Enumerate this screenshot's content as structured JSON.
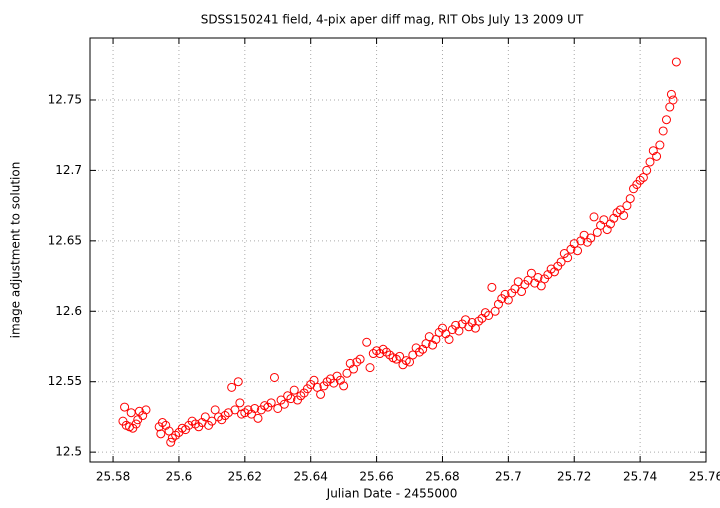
{
  "chart_data": {
    "type": "scatter",
    "title": "SDSS150241 field,  4-pix aper diff mag, RIT Obs July 13 2009 UT",
    "x_label": "Julian Date - 2455000",
    "y_label": "image adjustment to solution",
    "xlim": [
      25.573,
      25.76
    ],
    "ylim": [
      12.493,
      12.794
    ],
    "xticks": [
      25.58,
      25.6,
      25.62,
      25.64,
      25.66,
      25.68,
      25.7,
      25.72,
      25.74,
      25.76
    ],
    "yticks": [
      12.5,
      12.55,
      12.6,
      12.65,
      12.7,
      12.75
    ],
    "grid": true,
    "marker": "open-circle",
    "color": "#ff0000",
    "x": [
      25.583,
      25.5835,
      25.584,
      25.585,
      25.5855,
      25.586,
      25.587,
      25.5875,
      25.588,
      25.589,
      25.59,
      25.594,
      25.5945,
      25.595,
      25.596,
      25.597,
      25.5975,
      25.598,
      25.599,
      25.6,
      25.601,
      25.602,
      25.603,
      25.604,
      25.605,
      25.606,
      25.607,
      25.608,
      25.609,
      25.61,
      25.611,
      25.612,
      25.613,
      25.614,
      25.615,
      25.616,
      25.617,
      25.618,
      25.6185,
      25.619,
      25.62,
      25.621,
      25.622,
      25.623,
      25.624,
      25.625,
      25.626,
      25.627,
      25.628,
      25.629,
      25.63,
      25.631,
      25.632,
      25.633,
      25.634,
      25.635,
      25.636,
      25.637,
      25.638,
      25.639,
      25.64,
      25.641,
      25.642,
      25.643,
      25.644,
      25.645,
      25.646,
      25.647,
      25.648,
      25.649,
      25.65,
      25.651,
      25.652,
      25.653,
      25.654,
      25.655,
      25.657,
      25.658,
      25.659,
      25.66,
      25.661,
      25.662,
      25.663,
      25.664,
      25.665,
      25.666,
      25.667,
      25.668,
      25.669,
      25.67,
      25.671,
      25.672,
      25.673,
      25.674,
      25.675,
      25.676,
      25.677,
      25.678,
      25.679,
      25.68,
      25.681,
      25.682,
      25.683,
      25.684,
      25.685,
      25.686,
      25.687,
      25.688,
      25.689,
      25.69,
      25.691,
      25.692,
      25.693,
      25.694,
      25.695,
      25.696,
      25.697,
      25.698,
      25.699,
      25.7,
      25.701,
      25.702,
      25.703,
      25.704,
      25.705,
      25.706,
      25.707,
      25.708,
      25.709,
      25.71,
      25.711,
      25.712,
      25.713,
      25.714,
      25.715,
      25.716,
      25.717,
      25.718,
      25.719,
      25.72,
      25.721,
      25.722,
      25.723,
      25.724,
      25.725,
      25.726,
      25.727,
      25.728,
      25.729,
      25.73,
      25.731,
      25.732,
      25.733,
      25.734,
      25.735,
      25.736,
      25.737,
      25.738,
      25.739,
      25.74,
      25.741,
      25.742,
      25.743,
      25.744,
      25.745,
      25.746,
      25.747,
      25.748,
      25.749,
      25.7495,
      25.75,
      25.751
    ],
    "values": [
      12.522,
      12.532,
      12.519,
      12.518,
      12.528,
      12.517,
      12.52,
      12.523,
      12.529,
      12.526,
      12.53,
      12.518,
      12.513,
      12.521,
      12.519,
      12.515,
      12.507,
      12.51,
      12.512,
      12.514,
      12.517,
      12.516,
      12.519,
      12.522,
      12.52,
      12.518,
      12.521,
      12.525,
      12.519,
      12.522,
      12.53,
      12.525,
      12.523,
      12.526,
      12.528,
      12.546,
      12.53,
      12.55,
      12.535,
      12.527,
      12.528,
      12.53,
      12.527,
      12.531,
      12.524,
      12.53,
      12.533,
      12.532,
      12.535,
      12.553,
      12.531,
      12.537,
      12.534,
      12.54,
      12.538,
      12.544,
      12.537,
      12.54,
      12.542,
      12.545,
      12.548,
      12.551,
      12.546,
      12.541,
      12.547,
      12.55,
      12.552,
      12.549,
      12.554,
      12.551,
      12.547,
      12.556,
      12.563,
      12.559,
      12.564,
      12.566,
      12.578,
      12.56,
      12.57,
      12.572,
      12.57,
      12.573,
      12.571,
      12.569,
      12.567,
      12.566,
      12.568,
      12.562,
      12.565,
      12.564,
      12.569,
      12.574,
      12.571,
      12.573,
      12.577,
      12.582,
      12.576,
      12.58,
      12.585,
      12.588,
      12.584,
      12.58,
      12.587,
      12.59,
      12.586,
      12.591,
      12.594,
      12.589,
      12.592,
      12.588,
      12.593,
      12.595,
      12.599,
      12.597,
      12.617,
      12.6,
      12.605,
      12.609,
      12.612,
      12.608,
      12.613,
      12.616,
      12.621,
      12.614,
      12.619,
      12.622,
      12.627,
      12.62,
      12.624,
      12.618,
      12.623,
      12.626,
      12.63,
      12.628,
      12.632,
      12.635,
      12.641,
      12.638,
      12.644,
      12.648,
      12.643,
      12.65,
      12.654,
      12.649,
      12.652,
      12.667,
      12.656,
      12.661,
      12.665,
      12.658,
      12.662,
      12.666,
      12.67,
      12.672,
      12.668,
      12.675,
      12.68,
      12.687,
      12.69,
      12.693,
      12.695,
      12.7,
      12.706,
      12.714,
      12.71,
      12.718,
      12.728,
      12.736,
      12.745,
      12.754,
      12.75,
      12.777
    ]
  }
}
